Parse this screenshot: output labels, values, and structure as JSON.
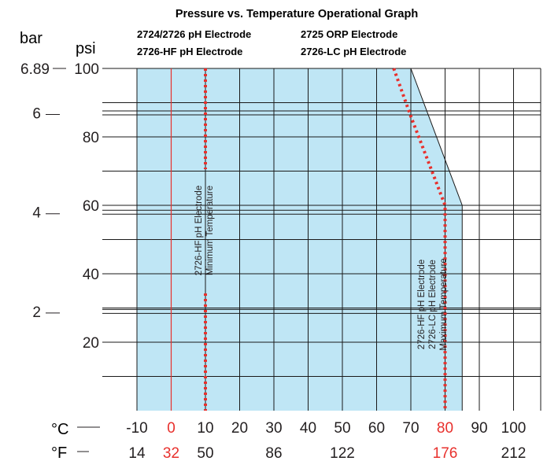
{
  "chart_data": {
    "type": "area",
    "title": "Pressure vs. Temperature Operational Graph",
    "subtitle_lines": [
      [
        "2724/2726 pH Electrode",
        "2725 ORP Electrode"
      ],
      [
        "2726-HF pH Electrode",
        "2726-LC pH Electrode"
      ]
    ],
    "axes": {
      "x_primary": {
        "name": "°C",
        "range": [
          -10,
          100
        ],
        "ticks": [
          "-10",
          "0",
          "10",
          "20",
          "30",
          "40",
          "50",
          "60",
          "70",
          "80",
          "90",
          "100"
        ],
        "highlight_ticks": [
          "0",
          "80"
        ]
      },
      "x_secondary": {
        "name": "°F",
        "ticks": [
          "14",
          "32",
          "50",
          "86",
          "122",
          "176",
          "212"
        ],
        "highlight_ticks": [
          "32",
          "176"
        ]
      },
      "y_primary": {
        "name": "psi",
        "range": [
          0,
          100
        ],
        "ticks": [
          "20",
          "40",
          "60",
          "80",
          "100"
        ]
      },
      "y_secondary": {
        "name": "bar",
        "ticks": [
          "2",
          "4",
          "6",
          "6.89"
        ]
      }
    },
    "grid": true,
    "series": [
      {
        "name": "2724/2726 pH Electrode, 2725 ORP Electrode",
        "kind": "operating_region",
        "x": [
          -10,
          -10,
          70,
          85,
          85
        ],
        "y": [
          0,
          100,
          100,
          60,
          0
        ]
      },
      {
        "name": "2726-HF pH Electrode, 2726-LC pH Electrode",
        "kind": "maximum_temperature_boundary",
        "x": [
          65,
          70,
          75,
          80,
          80
        ],
        "y": [
          100,
          86,
          73,
          60,
          0
        ]
      }
    ],
    "reference_lines": [
      {
        "axis": "x",
        "value": 0,
        "style": "solid"
      },
      {
        "axis": "x",
        "value": 10,
        "style": "dotted",
        "label_lines": [
          "2726-HF pH Electrode",
          "Minimum Temperature"
        ]
      },
      {
        "axis": "x",
        "value": 80,
        "style": "dotted",
        "label_lines": [
          "2726-HF pH Electrode",
          "2726-LC pH Electrode",
          "Maximum Temperature"
        ]
      }
    ],
    "colors": {
      "region_fill": "#bfe6f5",
      "reference": "#e8302c",
      "grid": "#1a1a1a",
      "text": "#231f20"
    }
  }
}
